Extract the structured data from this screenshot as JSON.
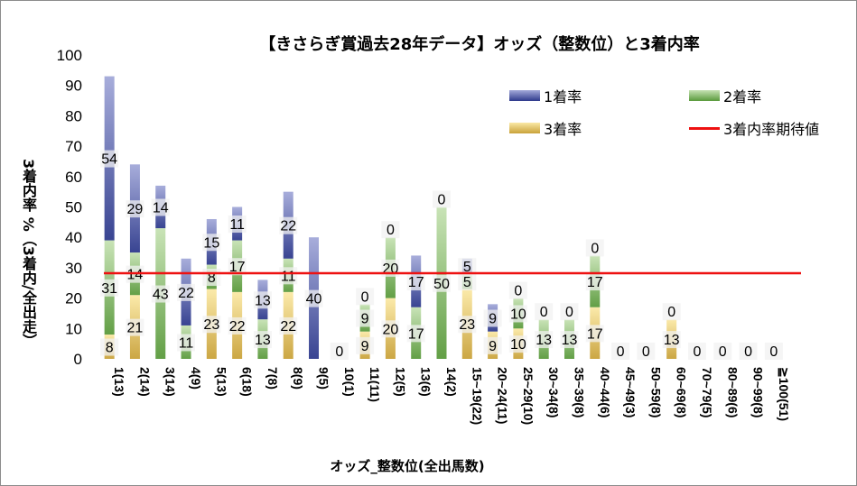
{
  "chart_data": {
    "type": "bar",
    "stacked": true,
    "title": "【きさらぎ賞過去28年データ】オッズ（整数位）と3着内率",
    "xlabel": "オッズ_整数位(全出馬数)",
    "ylabel": "3着内率 %（3着内/全出走）",
    "ylim": [
      0,
      100
    ],
    "yticks": [
      0,
      10,
      20,
      30,
      40,
      50,
      60,
      70,
      80,
      90,
      100
    ],
    "grid": false,
    "legend": "top-right",
    "categories": [
      "1(13)",
      "2(14)",
      "3(14)",
      "4(9)",
      "5(13)",
      "6(18)",
      "7(8)",
      "8(9)",
      "9(5)",
      "10(1)",
      "11(11)",
      "12(5)",
      "13(6)",
      "14(2)",
      "15~19(22)",
      "20~24(11)",
      "25~29(10)",
      "30~34(8)",
      "35~39(8)",
      "40~44(6)",
      "45~49(3)",
      "50~59(8)",
      "60~69(8)",
      "70~79(5)",
      "80~89(6)",
      "90~99(8)",
      "≧100(51)"
    ],
    "series": [
      {
        "name": "3着率",
        "color": "#c9a23a",
        "values": [
          8,
          21,
          0,
          0,
          23,
          22,
          0,
          22,
          0,
          0,
          9,
          20,
          0,
          0,
          23,
          9,
          10,
          0,
          0,
          17,
          0,
          0,
          13,
          0,
          0,
          0,
          0
        ]
      },
      {
        "name": "2着率",
        "color": "#6aaa4c",
        "values": [
          31,
          14,
          43,
          11,
          8,
          17,
          13,
          11,
          0,
          0,
          9,
          20,
          17,
          50,
          5,
          0,
          10,
          13,
          13,
          17,
          0,
          0,
          0,
          0,
          0,
          0,
          0
        ]
      },
      {
        "name": "1着率",
        "color": "#2e3a8c",
        "values": [
          54,
          29,
          14,
          22,
          15,
          11,
          13,
          22,
          40,
          0,
          0,
          0,
          17,
          0,
          5,
          9,
          0,
          0,
          0,
          0,
          0,
          0,
          0,
          0,
          0,
          0,
          0
        ]
      }
    ],
    "reference_line": {
      "name": "3着内率期待値",
      "value": 28.2,
      "color": "#ee1111"
    }
  }
}
